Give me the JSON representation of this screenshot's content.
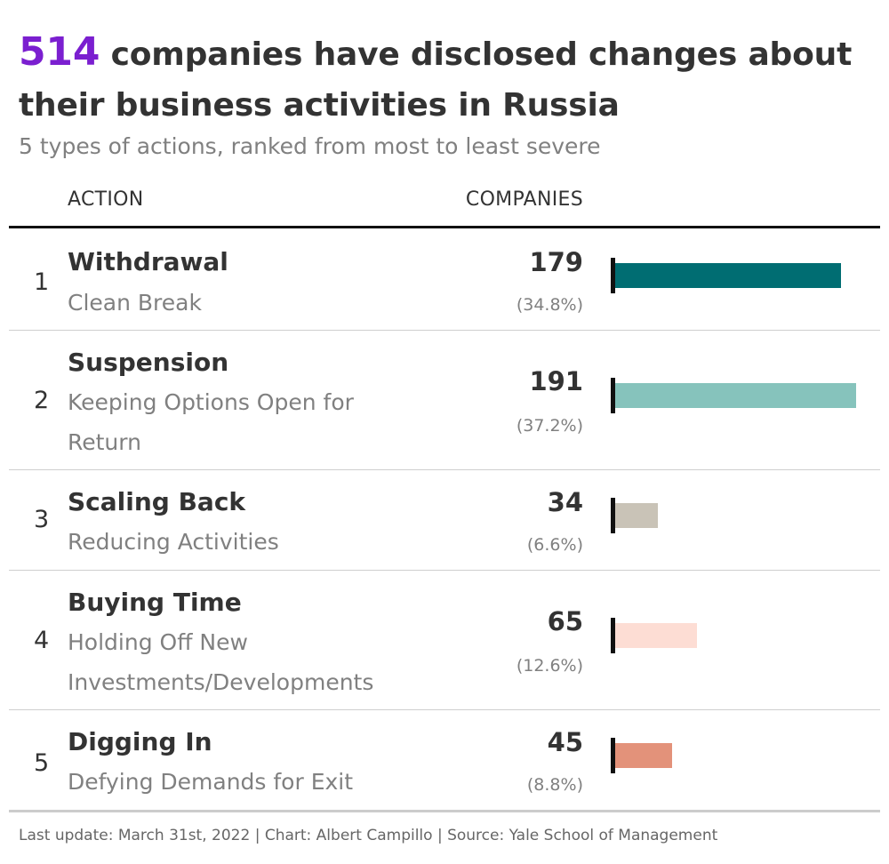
{
  "title": {
    "highlight": "514",
    "text": "companies have disclosed changes about their business activities in Russia"
  },
  "subtitle": "5 types of actions, ranked from most to least severe",
  "headers": {
    "action": "ACTION",
    "companies": "COMPANIES"
  },
  "footer": "Last update: March 31st, 2022 | Chart: Albert Campillo | Source: Yale School of Management",
  "colors": {
    "highlight": "#7b1fd0",
    "withdrawal": "#006d72",
    "suspension": "#86c3bc",
    "scaling_back": "#c9c3b7",
    "buying_time": "#fdddd4",
    "digging_in": "#e3927a"
  },
  "chart_data": {
    "type": "bar",
    "orientation": "horizontal",
    "categories": [
      "Withdrawal",
      "Suspension",
      "Scaling Back",
      "Buying Time",
      "Digging In"
    ],
    "values": [
      179,
      191,
      34,
      65,
      45
    ],
    "rows": [
      {
        "rank": "1",
        "name": "Withdrawal",
        "desc": "Clean Break",
        "count": "179",
        "pct": "(34.8%)",
        "value": 179,
        "color": "#006d72"
      },
      {
        "rank": "2",
        "name": "Suspension",
        "desc": "Keeping Options Open for Return",
        "count": "191",
        "pct": "(37.2%)",
        "value": 191,
        "color": "#86c3bc"
      },
      {
        "rank": "3",
        "name": "Scaling Back",
        "desc": "Reducing Activities",
        "count": "34",
        "pct": "(6.6%)",
        "value": 34,
        "color": "#c9c3b7"
      },
      {
        "rank": "4",
        "name": "Buying Time",
        "desc": "Holding Off New Investments/Developments",
        "count": "65",
        "pct": "(12.6%)",
        "value": 65,
        "color": "#fdddd4"
      },
      {
        "rank": "5",
        "name": "Digging In",
        "desc": "Defying Demands for Exit",
        "count": "45",
        "pct": "(8.8%)",
        "value": 45,
        "color": "#e3927a"
      }
    ],
    "xlim": [
      0,
      191
    ],
    "grid": false
  }
}
